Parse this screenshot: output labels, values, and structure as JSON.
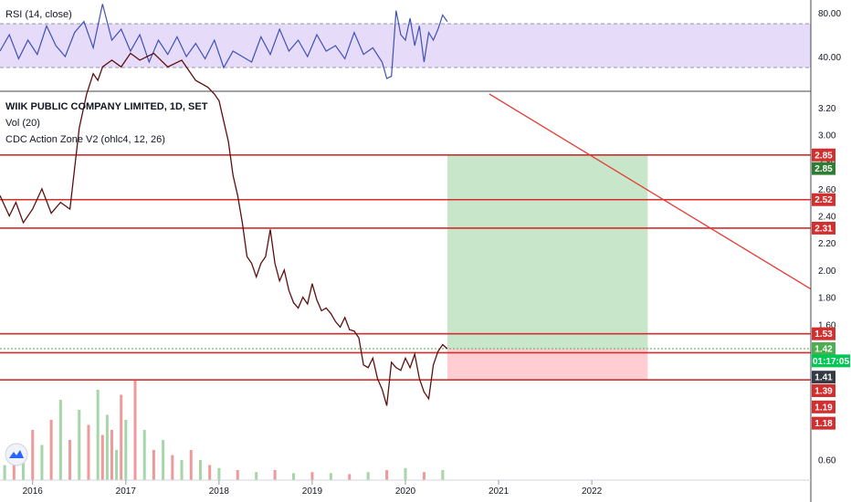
{
  "rsi_panel": {
    "label": "RSI (14, close)",
    "level_high": 70,
    "level_low": 30,
    "ticks": [
      80,
      40
    ],
    "ylim": [
      10,
      90
    ]
  },
  "main_panel": {
    "title": "WIIK PUBLIC COMPANY LIMITED, 1D, SET",
    "vol_label": "Vol (20)",
    "indicator_label": "CDC Action Zone V2 (ohlc4, 12, 26)",
    "price_ticks": [
      "3.20",
      "3.00",
      "2.80",
      "2.60",
      "2.40",
      "2.20",
      "2.00",
      "1.80",
      "1.60",
      "0.60"
    ],
    "ylim": [
      0.45,
      3.32
    ]
  },
  "chart_data": {
    "type": "line",
    "x_axis_labels": [
      "2016",
      "2017",
      "2018",
      "2019",
      "2020",
      "2021",
      "2022"
    ],
    "xlim": [
      2015.65,
      2024.35
    ],
    "price_series": {
      "name": "Close",
      "x": [
        2015.65,
        2015.75,
        2015.82,
        2015.9,
        2016.0,
        2016.1,
        2016.2,
        2016.3,
        2016.4,
        2016.45,
        2016.5,
        2016.58,
        2016.65,
        2016.7,
        2016.75,
        2016.85,
        2016.95,
        2017.05,
        2017.15,
        2017.3,
        2017.45,
        2017.6,
        2017.75,
        2017.88,
        2017.95,
        2018.0,
        2018.05,
        2018.1,
        2018.15,
        2018.2,
        2018.25,
        2018.3,
        2018.35,
        2018.4,
        2018.45,
        2018.5,
        2018.55,
        2018.6,
        2018.65,
        2018.7,
        2018.75,
        2018.8,
        2018.85,
        2018.9,
        2018.95,
        2019.0,
        2019.05,
        2019.1,
        2019.15,
        2019.2,
        2019.25,
        2019.3,
        2019.35,
        2019.4,
        2019.45,
        2019.5,
        2019.55,
        2019.6,
        2019.65,
        2019.7,
        2019.75,
        2019.8,
        2019.85,
        2019.9,
        2019.95,
        2020.0,
        2020.05,
        2020.1,
        2020.15,
        2020.2,
        2020.25,
        2020.3,
        2020.35,
        2020.4,
        2020.45
      ],
      "y": [
        2.55,
        2.4,
        2.5,
        2.35,
        2.45,
        2.6,
        2.42,
        2.5,
        2.45,
        2.75,
        3.05,
        3.3,
        3.45,
        3.4,
        3.5,
        3.55,
        3.5,
        3.6,
        3.55,
        3.6,
        3.5,
        3.55,
        3.4,
        3.35,
        3.3,
        3.25,
        3.1,
        2.95,
        2.7,
        2.55,
        2.35,
        2.1,
        2.05,
        1.95,
        2.05,
        2.1,
        2.3,
        2.05,
        1.92,
        2.0,
        1.85,
        1.76,
        1.72,
        1.8,
        1.75,
        1.9,
        1.78,
        1.7,
        1.72,
        1.68,
        1.62,
        1.58,
        1.65,
        1.56,
        1.55,
        1.5,
        1.3,
        1.28,
        1.35,
        1.2,
        1.12,
        1.0,
        1.32,
        1.28,
        1.26,
        1.35,
        1.28,
        1.38,
        1.2,
        1.1,
        1.05,
        1.3,
        1.4,
        1.45,
        1.42
      ]
    },
    "rsi_series": {
      "name": "RSI",
      "x": [
        2015.65,
        2015.75,
        2015.85,
        2015.95,
        2016.05,
        2016.15,
        2016.25,
        2016.35,
        2016.45,
        2016.55,
        2016.65,
        2016.75,
        2016.85,
        2016.95,
        2017.05,
        2017.15,
        2017.25,
        2017.35,
        2017.45,
        2017.55,
        2017.65,
        2017.75,
        2017.85,
        2017.95,
        2018.05,
        2018.15,
        2018.25,
        2018.35,
        2018.45,
        2018.55,
        2018.65,
        2018.75,
        2018.85,
        2018.95,
        2019.05,
        2019.15,
        2019.25,
        2019.35,
        2019.45,
        2019.55,
        2019.65,
        2019.75,
        2019.8,
        2019.85,
        2019.9,
        2019.95,
        2020.0,
        2020.05,
        2020.1,
        2020.15,
        2020.2,
        2020.25,
        2020.3,
        2020.35,
        2020.4,
        2020.45
      ],
      "y": [
        45,
        60,
        38,
        55,
        42,
        68,
        50,
        40,
        62,
        72,
        48,
        88,
        55,
        65,
        45,
        60,
        35,
        55,
        42,
        58,
        40,
        52,
        38,
        55,
        30,
        45,
        40,
        35,
        58,
        42,
        65,
        45,
        55,
        40,
        60,
        45,
        50,
        38,
        62,
        42,
        48,
        35,
        20,
        22,
        82,
        60,
        55,
        75,
        50,
        68,
        35,
        62,
        55,
        65,
        78,
        72
      ]
    },
    "volume_series": {
      "name": "Vol",
      "x": [
        2015.7,
        2015.8,
        2015.9,
        2016.0,
        2016.1,
        2016.2,
        2016.3,
        2016.4,
        2016.5,
        2016.6,
        2016.7,
        2016.75,
        2016.8,
        2016.85,
        2016.9,
        2016.95,
        2017.0,
        2017.1,
        2017.2,
        2017.3,
        2017.4,
        2017.5,
        2017.6,
        2017.7,
        2017.8,
        2017.9,
        2018.0,
        2018.2,
        2018.4,
        2018.6,
        2018.8,
        2019.0,
        2019.2,
        2019.4,
        2019.6,
        2019.8,
        2020.0,
        2020.2,
        2020.4
      ],
      "y": [
        0.15,
        0.3,
        0.25,
        0.5,
        0.35,
        0.6,
        0.8,
        0.4,
        0.7,
        0.55,
        0.9,
        0.45,
        0.65,
        0.5,
        0.3,
        0.85,
        0.6,
        1.0,
        0.5,
        0.3,
        0.4,
        0.25,
        0.2,
        0.3,
        0.2,
        0.15,
        0.12,
        0.1,
        0.08,
        0.1,
        0.07,
        0.08,
        0.07,
        0.06,
        0.08,
        0.1,
        0.12,
        0.08,
        0.1
      ]
    },
    "horizontal_lines": [
      {
        "price": 2.85,
        "label": "2.85"
      },
      {
        "price": 2.52,
        "label": "2.52"
      },
      {
        "price": 2.31,
        "label": "2.31"
      },
      {
        "price": 1.53,
        "label": "1.53"
      },
      {
        "price": 1.39,
        "label": "1.39"
      },
      {
        "price": 1.19,
        "label": "1.19"
      }
    ],
    "trend_line": {
      "x1": 2020.9,
      "y1": 3.3,
      "x2": 2024.35,
      "y2": 1.86
    },
    "position": {
      "x_start": 2020.45,
      "x_end": 2022.6,
      "entry": 1.42,
      "target": 2.85,
      "stop": 1.19
    },
    "price_tags": [
      {
        "price": 2.85,
        "label": "2.85",
        "color": "#d32f2f"
      },
      {
        "price": 2.75,
        "label": "2.85",
        "color": "#2e7d32"
      },
      {
        "price": 2.52,
        "label": "2.52",
        "color": "#d32f2f"
      },
      {
        "price": 2.31,
        "label": "2.31",
        "color": "#d32f2f"
      },
      {
        "price": 1.53,
        "label": "1.53",
        "color": "#d32f2f"
      },
      {
        "price": 1.42,
        "label": "1.42",
        "color": "#4caf50"
      },
      {
        "price": 1.33,
        "label": "01:17:05",
        "color": "#00c853"
      },
      {
        "price": 1.21,
        "label": "1.41",
        "color": "#363a45"
      },
      {
        "price": 1.11,
        "label": "1.39",
        "color": "#d32f2f"
      },
      {
        "price": 0.99,
        "label": "1.19",
        "color": "#d32f2f"
      },
      {
        "price": 0.87,
        "label": "1.18",
        "color": "#d32f2f"
      }
    ]
  },
  "colors": {
    "price_line": "#5d0f0f",
    "rsi_line": "#3f51b5",
    "rsi_band": "#e6dcfa",
    "level_line": "#d32f2f",
    "trend_line": "#e53935",
    "target_zone": "#c8e6c9",
    "stop_zone": "#ffcdd2",
    "volume_up": "#a5d6a7",
    "volume_down": "#ef9a9a"
  }
}
